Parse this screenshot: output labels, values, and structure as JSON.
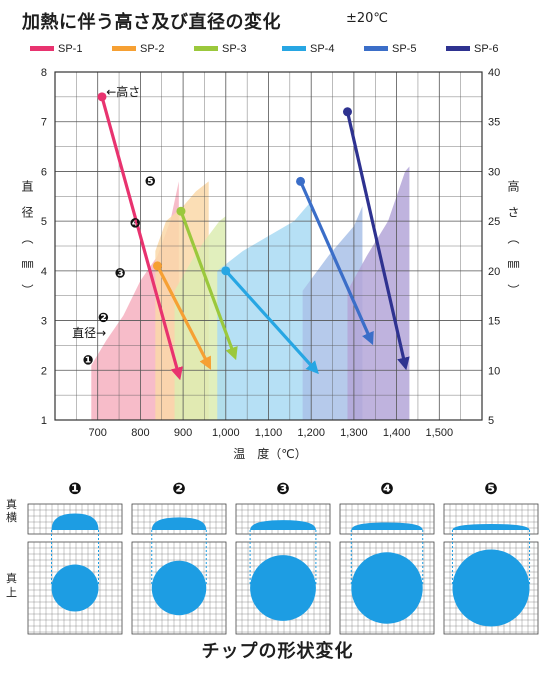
{
  "title": "加熱に伴う高さ及び直径の変化",
  "tolerance": "±20℃",
  "footer": "チップの形状変化",
  "chart_data": {
    "type": "line",
    "title": "加熱に伴う高さ及び直径の変化",
    "xlabel": "温　度（℃）",
    "ylabel_left": "直径（㎜）",
    "ylabel_right": "高さ（㎜）",
    "xlim": [
      600,
      1600
    ],
    "ylim_left": [
      1,
      8
    ],
    "ylim_right": [
      5,
      40
    ],
    "x_ticks": [
      "700",
      "800",
      "900",
      "1,000",
      "1,100",
      "1,200",
      "1,300",
      "1,400",
      "1,500"
    ],
    "x_tick_values": [
      700,
      800,
      900,
      1000,
      1100,
      1200,
      1300,
      1400,
      1500
    ],
    "y_ticks_left": [
      1,
      2,
      3,
      4,
      5,
      6,
      7,
      8
    ],
    "y_ticks_right": [
      5,
      10,
      15,
      20,
      25,
      30,
      35,
      40
    ],
    "grid": true,
    "legend_position": "top",
    "series": [
      {
        "name": "SP-1",
        "color": "#e8336f",
        "fill": "#f6b0c0",
        "height_line": {
          "start": [
            710,
            7.5
          ],
          "end": [
            890,
            1.9
          ]
        },
        "diameter_band": [
          [
            685,
            1.0
          ],
          [
            685,
            2.1
          ],
          [
            720,
            2.6
          ],
          [
            760,
            3.1
          ],
          [
            800,
            3.8
          ],
          [
            840,
            4.3
          ],
          [
            870,
            5.0
          ],
          [
            890,
            5.8
          ],
          [
            890,
            1.0
          ]
        ],
        "diameter_points": [
          [
            685,
            2.1
          ],
          [
            720,
            2.6
          ],
          [
            760,
            3.1
          ],
          [
            800,
            3.8
          ],
          [
            840,
            4.3
          ],
          [
            870,
            5.0
          ]
        ]
      },
      {
        "name": "SP-2",
        "color": "#f6a033",
        "fill": "#fad8a8",
        "height_line": {
          "start": [
            840,
            4.1
          ],
          "end": [
            960,
            2.1
          ]
        },
        "diameter_band": [
          [
            835,
            1.0
          ],
          [
            835,
            4.4
          ],
          [
            860,
            5.0
          ],
          [
            900,
            5.3
          ],
          [
            930,
            5.6
          ],
          [
            960,
            5.8
          ],
          [
            960,
            1.0
          ]
        ]
      },
      {
        "name": "SP-3",
        "color": "#9bc83c",
        "fill": "#dcecb2",
        "height_line": {
          "start": [
            895,
            5.2
          ],
          "end": [
            1020,
            2.3
          ]
        },
        "diameter_band": [
          [
            880,
            1.0
          ],
          [
            880,
            3.6
          ],
          [
            920,
            4.2
          ],
          [
            950,
            4.6
          ],
          [
            985,
            5.0
          ],
          [
            1000,
            5.1
          ],
          [
            1000,
            1.0
          ]
        ]
      },
      {
        "name": "SP-4",
        "color": "#27a6e3",
        "fill": "#a9daf3",
        "height_line": {
          "start": [
            1000,
            4.0
          ],
          "end": [
            1210,
            2.0
          ]
        },
        "diameter_band": [
          [
            980,
            1.0
          ],
          [
            980,
            4.0
          ],
          [
            1040,
            4.4
          ],
          [
            1100,
            4.7
          ],
          [
            1160,
            5.0
          ],
          [
            1200,
            5.4
          ],
          [
            1200,
            1.0
          ]
        ]
      },
      {
        "name": "SP-5",
        "color": "#3b6ec8",
        "fill": "#a9c1e8",
        "height_line": {
          "start": [
            1175,
            5.8
          ],
          "end": [
            1340,
            2.6
          ]
        },
        "diameter_band": [
          [
            1180,
            1.0
          ],
          [
            1180,
            3.6
          ],
          [
            1240,
            4.3
          ],
          [
            1300,
            4.9
          ],
          [
            1320,
            5.3
          ],
          [
            1320,
            1.0
          ]
        ]
      },
      {
        "name": "SP-6",
        "color": "#2e3290",
        "fill": "#b4a6d8",
        "height_line": {
          "start": [
            1285,
            7.2
          ],
          "end": [
            1420,
            2.1
          ]
        },
        "diameter_band": [
          [
            1285,
            1.0
          ],
          [
            1285,
            3.6
          ],
          [
            1330,
            4.3
          ],
          [
            1380,
            5.0
          ],
          [
            1420,
            6.0
          ],
          [
            1430,
            6.1
          ],
          [
            1430,
            1.0
          ]
        ]
      }
    ],
    "annotations": [
      {
        "text": "←高さ",
        "at": [
          720,
          7.6
        ]
      },
      {
        "text": "直径→",
        "at": [
          640,
          2.75
        ]
      },
      {
        "text": "❶",
        "at": [
          665,
          2.2
        ]
      },
      {
        "text": "❷",
        "at": [
          700,
          3.05
        ]
      },
      {
        "text": "❸",
        "at": [
          740,
          3.95
        ]
      },
      {
        "text": "❹",
        "at": [
          775,
          4.95
        ]
      },
      {
        "text": "❺",
        "at": [
          810,
          5.8
        ]
      }
    ]
  },
  "shape_panel": {
    "top_row_label": "真横",
    "bottom_row_label": "真上",
    "stages": [
      {
        "label": "❶",
        "side_height": 0.55,
        "top_diameter": 0.5
      },
      {
        "label": "❷",
        "side_height": 0.42,
        "top_diameter": 0.58
      },
      {
        "label": "❸",
        "side_height": 0.33,
        "top_diameter": 0.7
      },
      {
        "label": "❹",
        "side_height": 0.25,
        "top_diameter": 0.76
      },
      {
        "label": "❺",
        "side_height": 0.2,
        "top_diameter": 0.82
      }
    ],
    "shape_color": "#1d9de3"
  }
}
